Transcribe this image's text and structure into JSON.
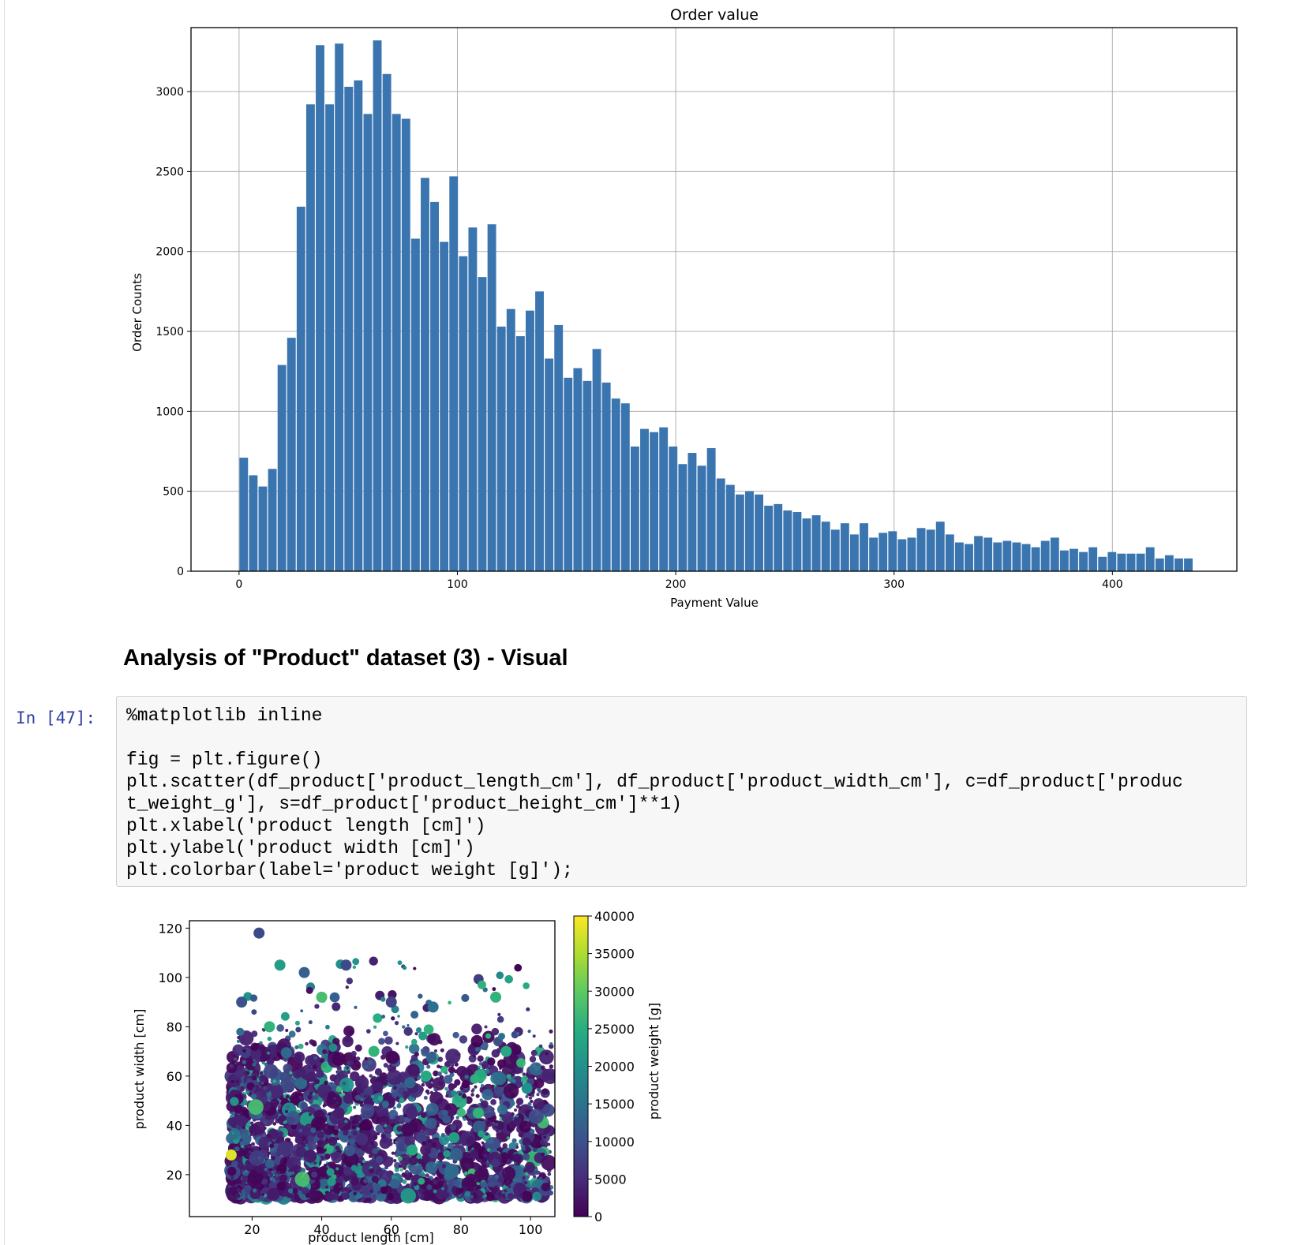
{
  "notebook": {
    "markdown_heading": "Analysis of \"Product\" dataset (3) - Visual",
    "cell_prompt": "In [47]:",
    "code": {
      "line1": "%matplotlib inline",
      "line2": "fig = plt.figure()",
      "line3a": "plt.scatter(df_product['product_length_cm'], df_product['product_width_cm'], c=df_product['produc",
      "line3b": "t_weight_g'], s=df_product['product_height_cm']**1)",
      "line4": "plt.xlabel('product length [cm]')",
      "line5": "plt.ylabel('product width [cm]')",
      "line6": "plt.colorbar(label='product weight [g]');"
    }
  },
  "chart_data": [
    {
      "type": "bar",
      "title": "Order value",
      "xlabel": "Payment Value",
      "ylabel": "Order Counts",
      "xlim": [
        -22,
        457
      ],
      "ylim": [
        0,
        3400
      ],
      "grid": true,
      "xticks": [
        0,
        100,
        200,
        300,
        400
      ],
      "yticks": [
        0,
        500,
        1000,
        1500,
        2000,
        2500,
        3000
      ],
      "bar_color": "#3a75b0",
      "bin_start": 0,
      "bin_width": 4.37,
      "values": [
        710,
        600,
        530,
        640,
        1290,
        1460,
        2280,
        2920,
        3290,
        2920,
        3300,
        3030,
        3070,
        2860,
        3320,
        3110,
        2860,
        2830,
        2080,
        2460,
        2310,
        2060,
        2470,
        1970,
        2150,
        1840,
        2170,
        1530,
        1640,
        1470,
        1630,
        1750,
        1330,
        1540,
        1210,
        1270,
        1190,
        1390,
        1180,
        1080,
        1050,
        780,
        890,
        870,
        900,
        780,
        670,
        740,
        660,
        770,
        580,
        540,
        480,
        500,
        480,
        410,
        420,
        380,
        370,
        330,
        350,
        310,
        260,
        300,
        230,
        300,
        210,
        240,
        250,
        200,
        210,
        270,
        260,
        310,
        230,
        180,
        170,
        220,
        210,
        180,
        190,
        180,
        170,
        150,
        190,
        210,
        130,
        140,
        120,
        150,
        90,
        120,
        110,
        110,
        110,
        150,
        80,
        100,
        80,
        80
      ]
    },
    {
      "type": "scatter",
      "xlabel": "product length [cm]",
      "ylabel": "product width [cm]",
      "xlim": [
        2,
        107
      ],
      "ylim": [
        3,
        123
      ],
      "xticks": [
        20,
        40,
        60,
        80,
        100
      ],
      "yticks": [
        20,
        40,
        60,
        80,
        100,
        120
      ],
      "colormap": "viridis",
      "colorbar": {
        "label": "product weight [g]",
        "range": [
          0,
          40000
        ],
        "ticks": [
          0,
          5000,
          10000,
          15000,
          20000,
          25000,
          30000,
          35000,
          40000
        ]
      },
      "points": [
        {
          "x": 22,
          "y": 118,
          "weight": 9000
        },
        {
          "x": 14,
          "y": 28,
          "weight": 38000
        },
        {
          "x": 28,
          "y": 105,
          "weight": 22000
        },
        {
          "x": 35,
          "y": 102,
          "weight": 12000
        },
        {
          "x": 40,
          "y": 92,
          "weight": 28000
        },
        {
          "x": 17,
          "y": 90,
          "weight": 10000
        },
        {
          "x": 25,
          "y": 80,
          "weight": 26000
        },
        {
          "x": 47,
          "y": 105,
          "weight": 9000
        },
        {
          "x": 60,
          "y": 90,
          "weight": 8000
        },
        {
          "x": 72,
          "y": 88,
          "weight": 15000
        },
        {
          "x": 90,
          "y": 92,
          "weight": 26000
        },
        {
          "x": 93,
          "y": 70,
          "weight": 24000
        },
        {
          "x": 99,
          "y": 55,
          "weight": 20000
        },
        {
          "x": 55,
          "y": 70,
          "weight": 26000
        },
        {
          "x": 70,
          "y": 60,
          "weight": 24000
        },
        {
          "x": 85,
          "y": 45,
          "weight": 26000
        },
        {
          "x": 78,
          "y": 35,
          "weight": 22000
        },
        {
          "x": 66,
          "y": 30,
          "weight": 24000
        }
      ]
    }
  ]
}
